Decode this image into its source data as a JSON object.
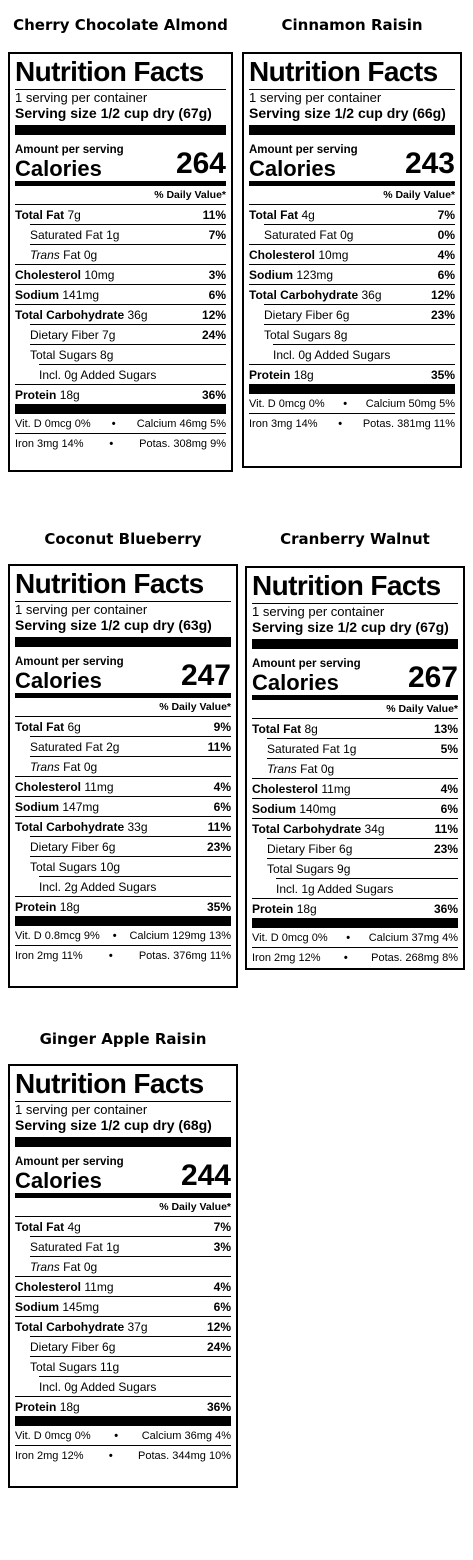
{
  "labels": [
    {
      "product": "Cherry Chocolate Almond",
      "title": "Nutrition Facts",
      "servings": "1 serving per container",
      "serving_size_label": "Serving size",
      "serving_size_value": "1/2 cup dry (67g)",
      "amount_per_serving": "Amount per serving",
      "calories_label": "Calories",
      "calories": "264",
      "dv_header": "% Daily Value*",
      "total_fat": {
        "label": "Total Fat",
        "amount": "7g",
        "dv": "11%"
      },
      "sat_fat": {
        "label": "Saturated Fat",
        "amount": "1g",
        "dv": "7%"
      },
      "trans_fat": {
        "label": "Trans",
        "amount": "Fat 0g"
      },
      "cholesterol": {
        "label": "Cholesterol",
        "amount": "10mg",
        "dv": "3%"
      },
      "sodium": {
        "label": "Sodium",
        "amount": "141mg",
        "dv": "6%"
      },
      "total_carb": {
        "label": "Total Carbohydrate",
        "amount": "36g",
        "dv": "12%"
      },
      "fiber": {
        "label": "Dietary Fiber",
        "amount": "7g",
        "dv": "24%"
      },
      "total_sugars": {
        "label": "Total Sugars",
        "amount": "8g"
      },
      "added_sugars": {
        "text": "Incl. 0g Added Sugars"
      },
      "protein": {
        "label": "Protein",
        "amount": "18g",
        "dv": "36%"
      },
      "vit_d": "Vit. D 0mcg 0%",
      "calcium": "Calcium 46mg 5%",
      "iron": "Iron 3mg 14%",
      "potassium": "Potas. 308mg 9%",
      "bullet": "•"
    },
    {
      "product": "Cinnamon Raisin",
      "title": "Nutrition Facts",
      "servings": "1 serving per container",
      "serving_size_label": "Serving size",
      "serving_size_value": "1/2 cup dry (66g)",
      "amount_per_serving": "Amount per serving",
      "calories_label": "Calories",
      "calories": "243",
      "dv_header": "% Daily Value*",
      "total_fat": {
        "label": "Total Fat",
        "amount": "4g",
        "dv": "7%"
      },
      "sat_fat": {
        "label": "Saturated Fat",
        "amount": "0g",
        "dv": "0%"
      },
      "trans_fat": null,
      "cholesterol": {
        "label": "Cholesterol",
        "amount": "10mg",
        "dv": "4%"
      },
      "sodium": {
        "label": "Sodium",
        "amount": "123mg",
        "dv": "6%"
      },
      "total_carb": {
        "label": "Total Carbohydrate",
        "amount": "36g",
        "dv": "12%"
      },
      "fiber": {
        "label": "Dietary Fiber",
        "amount": "6g",
        "dv": "23%"
      },
      "total_sugars": {
        "label": "Total Sugars",
        "amount": "8g"
      },
      "added_sugars": {
        "text": "Incl. 0g Added Sugars"
      },
      "protein": {
        "label": "Protein",
        "amount": "18g",
        "dv": "35%"
      },
      "vit_d": "Vit. D 0mcg 0%",
      "calcium": "Calcium 50mg 5%",
      "iron": "Iron 3mg 14%",
      "potassium": "Potas. 381mg 11%",
      "bullet": "•"
    },
    {
      "product": "Coconut Blueberry",
      "title": "Nutrition Facts",
      "servings": "1 serving per container",
      "serving_size_label": "Serving size",
      "serving_size_value": "1/2 cup dry (63g)",
      "amount_per_serving": "Amount per serving",
      "calories_label": "Calories",
      "calories": "247",
      "dv_header": "% Daily Value*",
      "total_fat": {
        "label": "Total Fat",
        "amount": "6g",
        "dv": "9%"
      },
      "sat_fat": {
        "label": "Saturated Fat",
        "amount": "2g",
        "dv": "11%"
      },
      "trans_fat": {
        "label": "Trans",
        "amount": "Fat 0g"
      },
      "cholesterol": {
        "label": "Cholesterol",
        "amount": "11mg",
        "dv": "4%"
      },
      "sodium": {
        "label": "Sodium",
        "amount": "147mg",
        "dv": "6%"
      },
      "total_carb": {
        "label": "Total Carbohydrate",
        "amount": "33g",
        "dv": "11%"
      },
      "fiber": {
        "label": "Dietary Fiber",
        "amount": "6g",
        "dv": "23%"
      },
      "total_sugars": {
        "label": "Total Sugars",
        "amount": "10g"
      },
      "added_sugars": {
        "text": "Incl. 2g Added Sugars"
      },
      "protein": {
        "label": "Protein",
        "amount": "18g",
        "dv": "35%"
      },
      "vit_d": "Vit. D 0.8mcg 9%",
      "calcium": "Calcium 129mg 13%",
      "iron": "Iron 2mg 11%",
      "potassium": "Potas. 376mg 11%",
      "bullet": "•"
    },
    {
      "product": "Cranberry Walnut",
      "title": "Nutrition Facts",
      "servings": "1 serving per container",
      "serving_size_label": "Serving size",
      "serving_size_value": "1/2 cup dry (67g)",
      "amount_per_serving": "Amount per serving",
      "calories_label": "Calories",
      "calories": "267",
      "dv_header": "% Daily Value*",
      "total_fat": {
        "label": "Total Fat",
        "amount": "8g",
        "dv": "13%"
      },
      "sat_fat": {
        "label": "Saturated Fat",
        "amount": "1g",
        "dv": "5%"
      },
      "trans_fat": {
        "label": "Trans",
        "amount": "Fat 0g"
      },
      "cholesterol": {
        "label": "Cholesterol",
        "amount": "11mg",
        "dv": "4%"
      },
      "sodium": {
        "label": "Sodium",
        "amount": "140mg",
        "dv": "6%"
      },
      "total_carb": {
        "label": "Total Carbohydrate",
        "amount": "34g",
        "dv": "11%"
      },
      "fiber": {
        "label": "Dietary Fiber",
        "amount": "6g",
        "dv": "23%"
      },
      "total_sugars": {
        "label": "Total Sugars",
        "amount": "9g"
      },
      "added_sugars": {
        "text": "Incl. 1g Added Sugars"
      },
      "protein": {
        "label": "Protein",
        "amount": "18g",
        "dv": "36%"
      },
      "vit_d": "Vit. D 0mcg 0%",
      "calcium": "Calcium 37mg 4%",
      "iron": "Iron 2mg 12%",
      "potassium": "Potas. 268mg 8%",
      "bullet": "•"
    },
    {
      "product": "Ginger Apple Raisin",
      "title": "Nutrition Facts",
      "servings": "1 serving per container",
      "serving_size_label": "Serving size",
      "serving_size_value": "1/2 cup dry (68g)",
      "amount_per_serving": "Amount per serving",
      "calories_label": "Calories",
      "calories": "244",
      "dv_header": "% Daily Value*",
      "total_fat": {
        "label": "Total Fat",
        "amount": "4g",
        "dv": "7%"
      },
      "sat_fat": {
        "label": "Saturated Fat",
        "amount": "1g",
        "dv": "3%"
      },
      "trans_fat": {
        "label": "Trans",
        "amount": "Fat 0g"
      },
      "cholesterol": {
        "label": "Cholesterol",
        "amount": "11mg",
        "dv": "4%"
      },
      "sodium": {
        "label": "Sodium",
        "amount": "145mg",
        "dv": "6%"
      },
      "total_carb": {
        "label": "Total Carbohydrate",
        "amount": "37g",
        "dv": "12%"
      },
      "fiber": {
        "label": "Dietary Fiber",
        "amount": "6g",
        "dv": "24%"
      },
      "total_sugars": {
        "label": "Total Sugars",
        "amount": "11g"
      },
      "added_sugars": {
        "text": "Incl. 0g Added Sugars"
      },
      "protein": {
        "label": "Protein",
        "amount": "18g",
        "dv": "36%"
      },
      "vit_d": "Vit. D 0mcg 0%",
      "calcium": "Calcium 36mg 4%",
      "iron": "Iron 2mg 12%",
      "potassium": "Potas. 344mg 10%",
      "bullet": "•"
    }
  ]
}
